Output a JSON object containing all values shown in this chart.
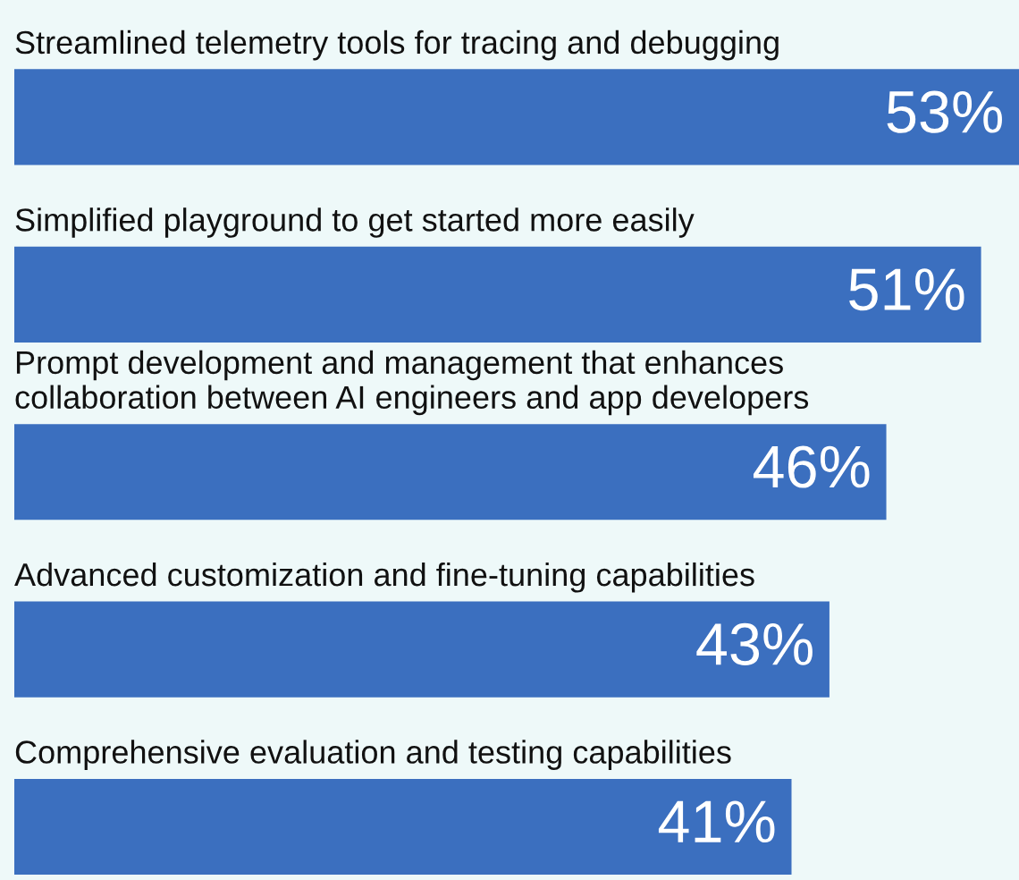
{
  "chart_data": {
    "type": "bar",
    "orientation": "horizontal",
    "categories": [
      "Streamlined telemetry tools for tracing and debugging",
      "Simplified playground to get started more easily",
      "Prompt development and management that enhances\ncollaboration between AI engineers and app developers",
      "Advanced customization and fine-tuning capabilities",
      "Comprehensive evaluation and testing capabilities"
    ],
    "values": [
      53,
      51,
      46,
      43,
      41
    ],
    "value_labels": [
      "53%",
      "51%",
      "46%",
      "43%",
      "41%"
    ],
    "color": "#3b6fbf",
    "xlim": [
      0,
      53
    ],
    "grid": false,
    "legend": false
  }
}
